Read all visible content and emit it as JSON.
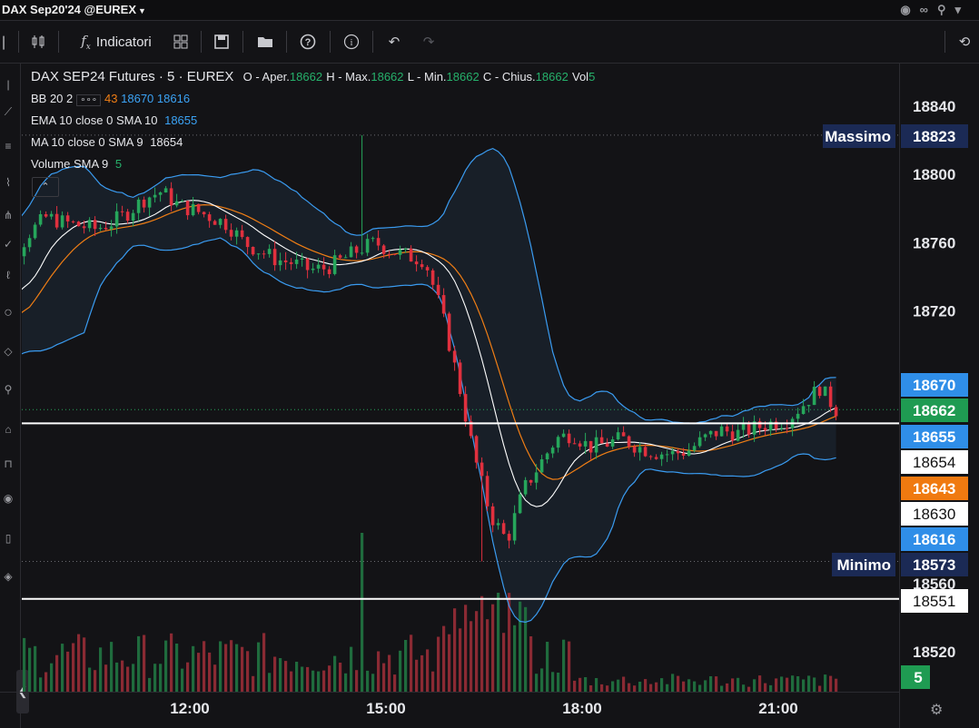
{
  "window_title": "DAX Sep20'24 @EUREX",
  "toolbar": {
    "indicators_label": "Indicatori"
  },
  "legend": {
    "symbol": "DAX SEP24 Futures · 5 · EUREX",
    "open_label": "O - Aper.",
    "open_value": "18662",
    "high_label": "H - Max.",
    "high_value": "18662",
    "low_label": "L - Min.",
    "low_value": "18662",
    "close_label": "C - Chius.",
    "close_value": "18662",
    "vol_label": "Vol",
    "vol_value": "5",
    "bb_name": "BB 20 2",
    "bb_settings": "∘∘∘",
    "bb_mid": "43",
    "bb_upper": "18670",
    "bb_lower": "18616",
    "ema_name": "EMA 10 close 0 SMA 10",
    "ema_value": "18655",
    "ma_name": "MA 10 close 0 SMA 9",
    "ma_value": "18654",
    "vol_sma_name": "Volume SMA 9",
    "vol_sma_value": "5"
  },
  "colors": {
    "up": "#26a65b",
    "down": "#e0303e",
    "bb": "#3a9bf0",
    "ema": "#f07e15",
    "ma": "#ffffff",
    "bg": "#131316"
  },
  "price_labels": [
    {
      "text": "Massimo",
      "value": "18823",
      "kind": "navy-tag"
    },
    {
      "text": "",
      "value": "18670",
      "kind": "blue"
    },
    {
      "text": "",
      "value": "18662",
      "kind": "green"
    },
    {
      "text": "",
      "value": "18655",
      "kind": "blue"
    },
    {
      "text": "",
      "value": "18654",
      "kind": "white"
    },
    {
      "text": "",
      "value": "18643",
      "kind": "orange"
    },
    {
      "text": "",
      "value": "18630",
      "kind": "white"
    },
    {
      "text": "",
      "value": "18616",
      "kind": "blue"
    },
    {
      "text": "Minimo",
      "value": "18573",
      "kind": "navy-tag"
    },
    {
      "text": "",
      "value": "18551",
      "kind": "white"
    },
    {
      "text": "",
      "value": "5",
      "kind": "green-vol"
    }
  ],
  "chart_data": {
    "type": "line",
    "title": "DAX SEP24 Futures · 5 · EUREX",
    "xlabel": "",
    "ylabel": "",
    "ylim": [
      18505,
      18860
    ],
    "x_ticks": [
      "12:00",
      "15:00",
      "18:00",
      "21:00"
    ],
    "y_ticks": [
      18840,
      18800,
      18760,
      18720,
      18560,
      18520
    ],
    "grid": false,
    "high_line": 18823,
    "low_line": 18573,
    "horizontal_lines": [
      18654,
      18551
    ],
    "last_price": 18662,
    "series": [
      {
        "name": "Close",
        "values": [
          18705,
          18738,
          18752,
          18766,
          18775,
          18772,
          18770,
          18768,
          18772,
          18778,
          18786,
          18790,
          18782,
          18779,
          18775,
          18771,
          18760,
          18755,
          18750,
          18748,
          18744,
          18745,
          18750,
          18756,
          18760,
          18755,
          18752,
          18750,
          18720,
          18680,
          18635,
          18600,
          18585,
          18615,
          18630,
          18645,
          18648,
          18640,
          18642,
          18645,
          18640,
          18637,
          18636,
          18638,
          18645,
          18650,
          18648,
          18651,
          18654,
          18656,
          18665,
          18675,
          18662
        ]
      }
    ]
  }
}
